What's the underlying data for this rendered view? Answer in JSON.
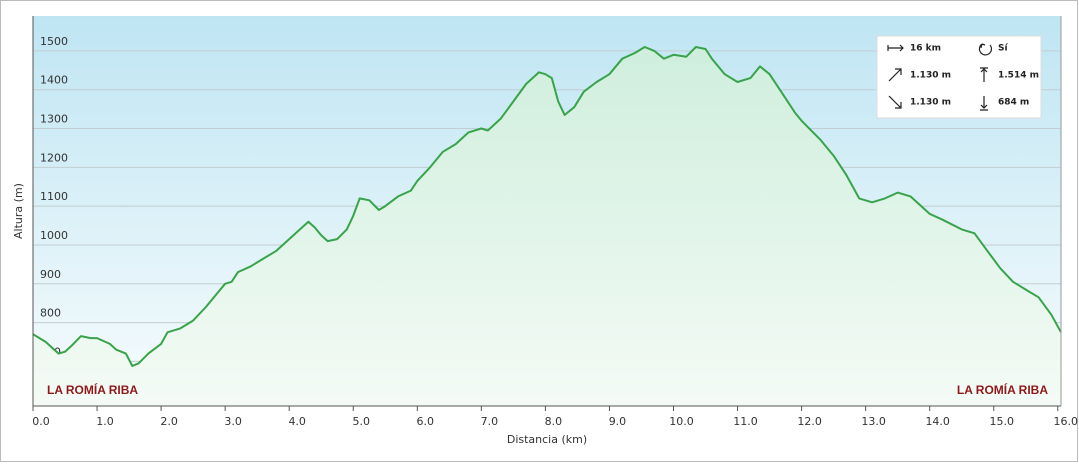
{
  "chart_data": {
    "type": "line",
    "xlabel": "Distancia (km)",
    "ylabel": "Altura (m)",
    "color": "#38a34a",
    "grid": true,
    "x": [
      0,
      0.2,
      0.4,
      0.5,
      0.6,
      0.75,
      0.9,
      1.0,
      1.2,
      1.3,
      1.45,
      1.55,
      1.65,
      1.8,
      2.0,
      2.1,
      2.3,
      2.5,
      2.7,
      2.9,
      3.0,
      3.1,
      3.2,
      3.4,
      3.6,
      3.8,
      4.0,
      4.2,
      4.3,
      4.4,
      4.5,
      4.6,
      4.75,
      4.9,
      5.0,
      5.1,
      5.25,
      5.4,
      5.5,
      5.7,
      5.9,
      6.0,
      6.2,
      6.4,
      6.6,
      6.8,
      7.0,
      7.1,
      7.3,
      7.5,
      7.7,
      7.9,
      8.0,
      8.1,
      8.2,
      8.3,
      8.45,
      8.6,
      8.8,
      9.0,
      9.2,
      9.4,
      9.55,
      9.7,
      9.85,
      10.0,
      10.2,
      10.35,
      10.5,
      10.6,
      10.8,
      11.0,
      11.2,
      11.35,
      11.5,
      11.7,
      11.9,
      12.0,
      12.3,
      12.5,
      12.7,
      12.9,
      13.1,
      13.3,
      13.5,
      13.7,
      14.0,
      14.2,
      14.5,
      14.7,
      14.9,
      15.1,
      15.3,
      15.5,
      15.7,
      15.9,
      16.05
    ],
    "values": [
      770,
      750,
      720,
      725,
      740,
      765,
      760,
      760,
      745,
      730,
      720,
      688,
      695,
      720,
      745,
      775,
      785,
      805,
      840,
      880,
      900,
      905,
      930,
      945,
      965,
      985,
      1015,
      1045,
      1060,
      1045,
      1025,
      1010,
      1015,
      1040,
      1075,
      1120,
      1115,
      1090,
      1100,
      1125,
      1140,
      1165,
      1200,
      1240,
      1260,
      1290,
      1300,
      1295,
      1325,
      1370,
      1415,
      1445,
      1440,
      1430,
      1370,
      1335,
      1355,
      1395,
      1420,
      1440,
      1480,
      1495,
      1510,
      1500,
      1480,
      1490,
      1485,
      1510,
      1505,
      1480,
      1440,
      1420,
      1430,
      1460,
      1440,
      1390,
      1340,
      1320,
      1270,
      1230,
      1180,
      1120,
      1110,
      1120,
      1135,
      1125,
      1080,
      1065,
      1040,
      1030,
      985,
      940,
      905,
      885,
      865,
      820,
      775
    ],
    "xlim": [
      0,
      16.05
    ],
    "ylim": [
      585,
      1590
    ],
    "yticks": [
      700,
      800,
      900,
      1000,
      1100,
      1200,
      1300,
      1400,
      1500
    ],
    "xticks": [
      {
        "value": 0,
        "label": "0.0"
      },
      {
        "value": 1,
        "label": "1.0"
      },
      {
        "value": 2,
        "label": "2.0"
      },
      {
        "value": 3,
        "label": "3.0"
      },
      {
        "value": 4,
        "label": "4.0"
      },
      {
        "value": 5,
        "label": "5.0"
      },
      {
        "value": 6,
        "label": "6.0"
      },
      {
        "value": 7,
        "label": "7.0"
      },
      {
        "value": 8,
        "label": "8.0"
      },
      {
        "value": 9,
        "label": "9.0"
      },
      {
        "value": 10,
        "label": "10.0"
      },
      {
        "value": 11,
        "label": "11.0"
      },
      {
        "value": 12,
        "label": "12.0"
      },
      {
        "value": 13,
        "label": "13.0"
      },
      {
        "value": 14,
        "label": "14.0"
      },
      {
        "value": 15,
        "label": "15.0"
      },
      {
        "value": 16,
        "label": "16.0"
      }
    ],
    "annotations": [
      "LA ROMÍA RIBA",
      "LA ROMÍA RIBA"
    ],
    "stats": [
      "16 km",
      "Sí",
      "1.130 m",
      "1.514 m",
      "1.130 m",
      "684 m"
    ]
  }
}
